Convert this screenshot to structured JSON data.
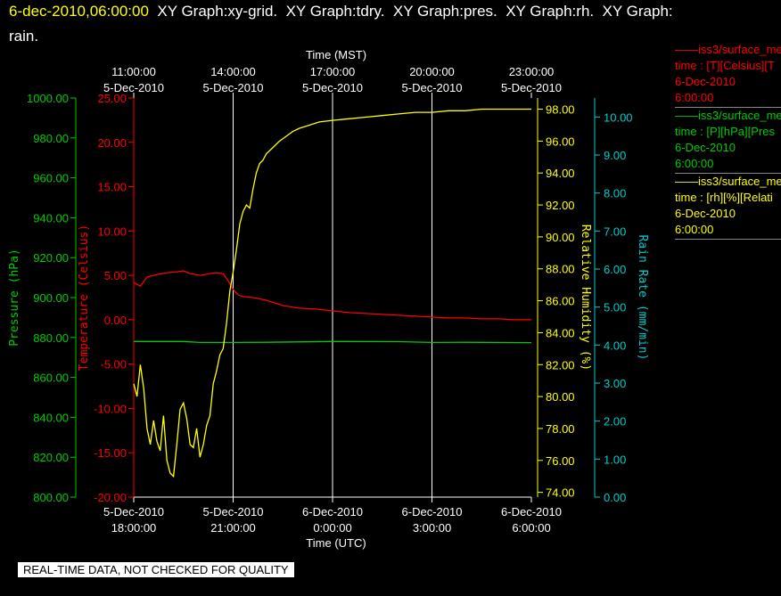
{
  "header": {
    "timestamp": "6-dec-2010,06:00:00",
    "line1_rest": "  XY Graph:xy-grid.  XY Graph:tdry.  XY Graph:pres.  XY Graph:rh.  XY Graph:",
    "line2": "rain."
  },
  "colors": {
    "temperature": "#ff0000",
    "pressure": "#00cc00",
    "humidity": "#ffff00",
    "rain": "#00cccc",
    "grid": "#ffffff"
  },
  "legend": [
    {
      "series": "iss3/surface_me",
      "variable": "time : [T][Celsius][T",
      "date": "6-Dec-2010",
      "time": "6:00:00",
      "color": "#ff0000"
    },
    {
      "series": "iss3/surface_me",
      "variable": "time : [P][hPa][Pres",
      "date": "6-Dec-2010",
      "time": "6:00:00",
      "color": "#00cc00"
    },
    {
      "series": "iss3/surface_me",
      "variable": "time : [rh][%][Relati",
      "date": "6-Dec-2010",
      "time": "6:00:00",
      "color": "#ffff00"
    }
  ],
  "footer": "REAL-TIME DATA, NOT CHECKED FOR QUALITY",
  "chart_data": {
    "type": "line",
    "x_range_utc_hours": [
      18,
      30
    ],
    "top_axis": {
      "label": "Time (MST)",
      "ticks": [
        {
          "x": 18,
          "line1": "11:00:00",
          "line2": "5-Dec-2010"
        },
        {
          "x": 21,
          "line1": "14:00:00",
          "line2": "5-Dec-2010"
        },
        {
          "x": 24,
          "line1": "17:00:00",
          "line2": "5-Dec-2010"
        },
        {
          "x": 27,
          "line1": "20:00:00",
          "line2": "5-Dec-2010"
        },
        {
          "x": 30,
          "line1": "23:00:00",
          "line2": "5-Dec-2010"
        }
      ]
    },
    "bottom_axis": {
      "label": "Time (UTC)",
      "ticks": [
        {
          "x": 18,
          "line1": "5-Dec-2010",
          "line2": "18:00:00"
        },
        {
          "x": 21,
          "line1": "5-Dec-2010",
          "line2": "21:00:00"
        },
        {
          "x": 24,
          "line1": "6-Dec-2010",
          "line2": "0:00:00"
        },
        {
          "x": 27,
          "line1": "6-Dec-2010",
          "line2": "3:00:00"
        },
        {
          "x": 30,
          "line1": "6-Dec-2010",
          "line2": "6:00:00"
        }
      ]
    },
    "grid_x": [
      21,
      24,
      27
    ],
    "axes": {
      "pressure": {
        "label": "Pressure (hPa)",
        "range": [
          800,
          1000
        ],
        "ticks": [
          "800.00",
          "820.00",
          "840.00",
          "860.00",
          "880.00",
          "900.00",
          "920.00",
          "940.00",
          "960.00",
          "980.00",
          "1000.00"
        ]
      },
      "temperature": {
        "label": "Temperature (Celsius)",
        "range": [
          -20,
          25
        ],
        "ticks": [
          "-20.00",
          "-15.00",
          "-10.00",
          "-5.00",
          "0.00",
          "5.00",
          "10.00",
          "15.00",
          "20.00",
          "25.00"
        ]
      },
      "humidity": {
        "label": "Relative Humidity (%)",
        "range": [
          73.7,
          98.7
        ],
        "ticks": [
          "74.00",
          "76.00",
          "78.00",
          "80.00",
          "82.00",
          "84.00",
          "86.00",
          "88.00",
          "90.00",
          "92.00",
          "94.00",
          "96.00",
          "98.00"
        ]
      },
      "rain": {
        "label": "Rain Rate (mm/min)",
        "range": [
          0,
          10.5
        ],
        "ticks": [
          "0.00",
          "1.00",
          "2.00",
          "3.00",
          "4.00",
          "5.00",
          "6.00",
          "7.00",
          "8.00",
          "9.00",
          "10.00"
        ]
      }
    },
    "series": [
      {
        "name": "temperature",
        "axis": "temperature",
        "x": [
          18.0,
          18.2,
          18.4,
          18.7,
          19.0,
          19.3,
          19.5,
          19.7,
          20.0,
          20.3,
          20.5,
          20.7,
          20.85,
          21.0,
          21.15,
          21.3,
          21.6,
          22.0,
          22.5,
          23.0,
          23.5,
          24.0,
          24.5,
          25.0,
          25.5,
          26.0,
          26.5,
          27.0,
          27.5,
          28.0,
          28.5,
          29.0,
          29.5,
          30.0
        ],
        "y": [
          4.2,
          3.8,
          4.8,
          5.1,
          5.3,
          5.4,
          5.5,
          5.2,
          5.0,
          5.2,
          5.3,
          5.2,
          4.4,
          3.4,
          2.8,
          2.6,
          2.5,
          2.2,
          1.6,
          1.3,
          1.2,
          1.0,
          0.8,
          0.7,
          0.6,
          0.5,
          0.4,
          0.3,
          0.2,
          0.2,
          0.1,
          0.1,
          0.0,
          0.0
        ]
      },
      {
        "name": "pressure",
        "axis": "pressure",
        "x": [
          18.0,
          19.5,
          20.0,
          21.0,
          22.0,
          24.0,
          26.0,
          27.0,
          28.0,
          30.0
        ],
        "y": [
          878.0,
          878.0,
          877.5,
          877.5,
          877.6,
          878.0,
          877.9,
          877.5,
          877.6,
          877.4
        ]
      },
      {
        "name": "humidity",
        "axis": "humidity",
        "x": [
          18.0,
          18.1,
          18.2,
          18.3,
          18.4,
          18.5,
          18.6,
          18.7,
          18.8,
          18.9,
          19.0,
          19.1,
          19.2,
          19.3,
          19.4,
          19.5,
          19.6,
          19.7,
          19.8,
          19.9,
          20.0,
          20.1,
          20.2,
          20.3,
          20.4,
          20.5,
          20.6,
          20.7,
          20.8,
          20.9,
          21.0,
          21.1,
          21.2,
          21.3,
          21.4,
          21.5,
          21.6,
          21.7,
          21.8,
          21.9,
          22.0,
          22.2,
          22.4,
          22.6,
          22.8,
          23.0,
          23.3,
          23.6,
          24.0,
          24.5,
          25.0,
          25.5,
          26.0,
          26.5,
          27.0,
          27.5,
          28.0,
          28.5,
          29.0,
          29.5,
          30.0
        ],
        "y": [
          80.8,
          80.0,
          82.0,
          80.5,
          78.0,
          77.0,
          78.5,
          77.2,
          76.6,
          78.8,
          76.0,
          75.2,
          75.0,
          77.0,
          79.2,
          79.6,
          78.6,
          77.0,
          76.8,
          78.0,
          76.2,
          77.0,
          78.2,
          78.8,
          80.8,
          81.6,
          82.6,
          83.0,
          84.6,
          86.6,
          87.8,
          89.2,
          90.8,
          91.6,
          92.0,
          91.8,
          93.0,
          94.0,
          94.6,
          94.8,
          95.2,
          95.6,
          96.0,
          96.3,
          96.6,
          96.8,
          97.0,
          97.2,
          97.3,
          97.4,
          97.5,
          97.6,
          97.7,
          97.8,
          97.8,
          97.9,
          97.9,
          98.0,
          98.0,
          98.0,
          98.0
        ]
      }
    ]
  }
}
